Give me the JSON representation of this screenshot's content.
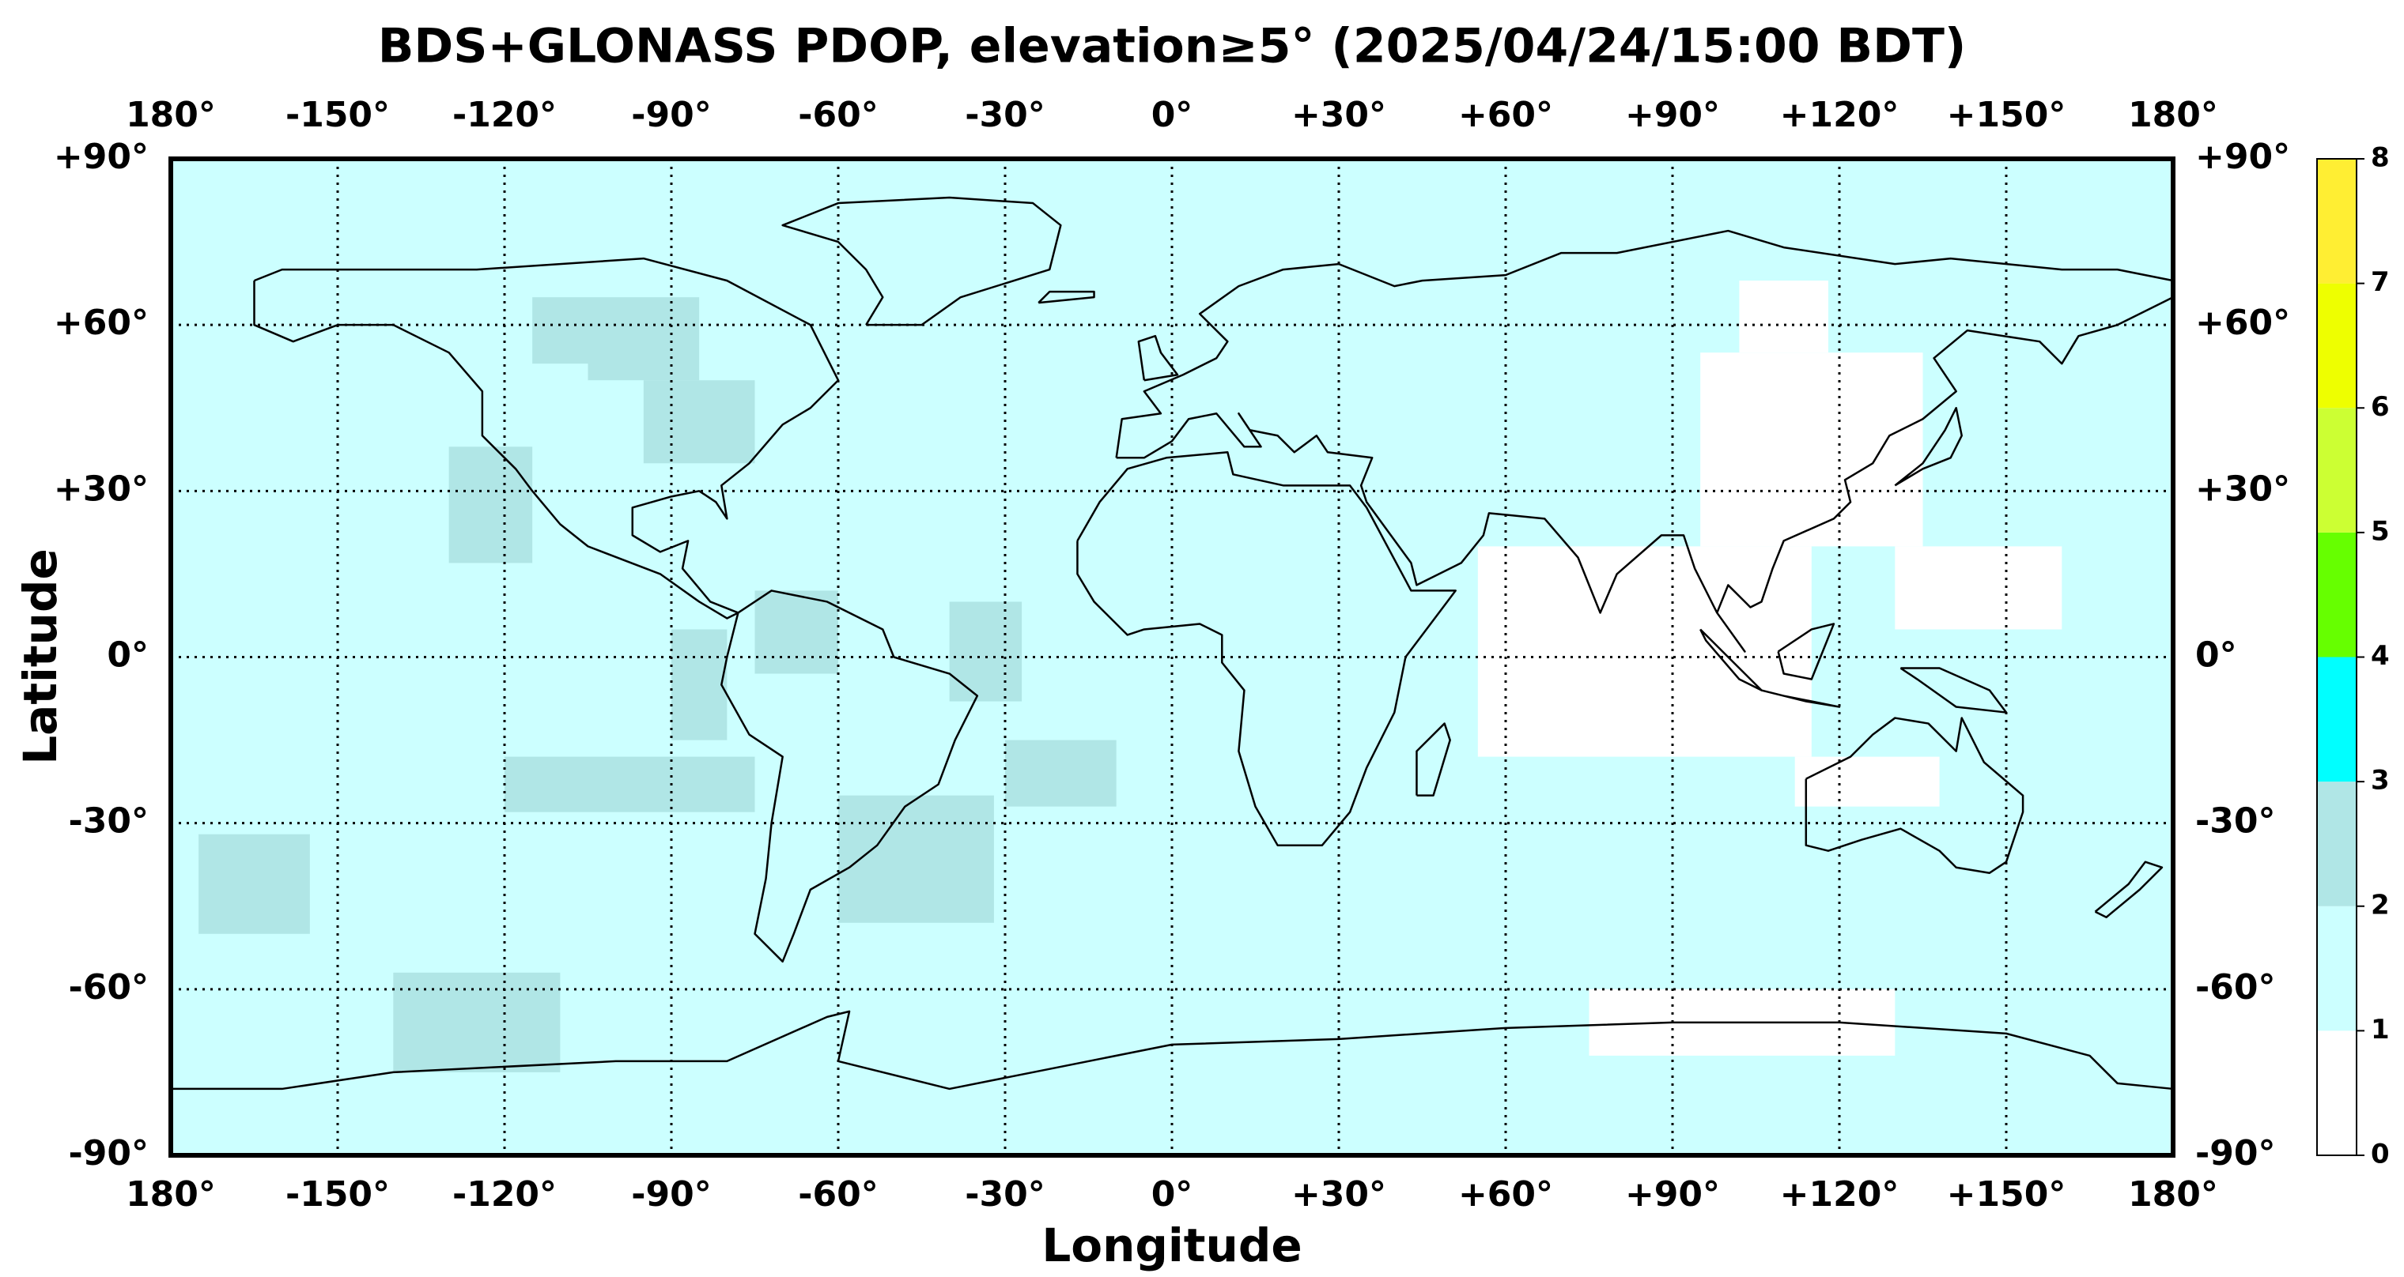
{
  "chart_data": {
    "type": "map",
    "title": "BDS+GLONASS PDOP, elevation≥5° (2025/04/24/15:00 BDT)",
    "x_label": "Longitude",
    "y_label": "Latitude",
    "xlim": [
      -180,
      180
    ],
    "ylim": [
      -90,
      90
    ],
    "xticks": [
      {
        "value": -180,
        "label": "180°"
      },
      {
        "value": -150,
        "label": "-150°"
      },
      {
        "value": -120,
        "label": "-120°"
      },
      {
        "value": -90,
        "label": "-90°"
      },
      {
        "value": -60,
        "label": "-60°"
      },
      {
        "value": -30,
        "label": "-30°"
      },
      {
        "value": 0,
        "label": "0°"
      },
      {
        "value": 30,
        "label": "+30°"
      },
      {
        "value": 60,
        "label": "+60°"
      },
      {
        "value": 90,
        "label": "+90°"
      },
      {
        "value": 120,
        "label": "+120°"
      },
      {
        "value": 150,
        "label": "+150°"
      },
      {
        "value": 180,
        "label": "180°"
      }
    ],
    "yticks": [
      {
        "value": -90,
        "label": "-90°"
      },
      {
        "value": -60,
        "label": "-60°"
      },
      {
        "value": -30,
        "label": "-30°"
      },
      {
        "value": 0,
        "label": "0°"
      },
      {
        "value": 30,
        "label": "+30°"
      },
      {
        "value": 60,
        "label": "+60°"
      },
      {
        "value": 90,
        "label": "+90°"
      }
    ],
    "grid": true,
    "colorbar": {
      "ticks": [
        0,
        1,
        2,
        3,
        4,
        5,
        6,
        7,
        8
      ],
      "colors": [
        "#ffffff",
        "#ccffff",
        "#b0e6e6",
        "#00ffff",
        "#66ff00",
        "#ccff33",
        "#eeff00",
        "#ffee33"
      ]
    },
    "regions": [
      {
        "lon": [
          -180,
          180
        ],
        "lat": [
          -90,
          90
        ],
        "pdop": 1.5
      },
      {
        "lon": [
          -105,
          -85
        ],
        "lat": [
          50,
          65
        ],
        "pdop": 2.5
      },
      {
        "lon": [
          -95,
          -75
        ],
        "lat": [
          35,
          50
        ],
        "pdop": 2.5
      },
      {
        "lon": [
          -130,
          -115
        ],
        "lat": [
          17,
          38
        ],
        "pdop": 2.5
      },
      {
        "lon": [
          -90,
          -80
        ],
        "lat": [
          -15,
          5
        ],
        "pdop": 2.5
      },
      {
        "lon": [
          -75,
          -60
        ],
        "lat": [
          -3,
          12
        ],
        "pdop": 2.5
      },
      {
        "lon": [
          -40,
          -27
        ],
        "lat": [
          -8,
          10
        ],
        "pdop": 2.5
      },
      {
        "lon": [
          -30,
          -10
        ],
        "lat": [
          -27,
          -15
        ],
        "pdop": 2.5
      },
      {
        "lon": [
          -60,
          -32
        ],
        "lat": [
          -48,
          -25
        ],
        "pdop": 2.5
      },
      {
        "lon": [
          -175,
          -155
        ],
        "lat": [
          -50,
          -32
        ],
        "pdop": 2.5
      },
      {
        "lon": [
          -140,
          -110
        ],
        "lat": [
          -75,
          -57
        ],
        "pdop": 2.5
      },
      {
        "lon": [
          -120,
          -75
        ],
        "lat": [
          -28,
          -18
        ],
        "pdop": 2.5
      },
      {
        "lon": [
          -115,
          -105
        ],
        "lat": [
          53,
          65
        ],
        "pdop": 2.5
      },
      {
        "lon": [
          55,
          115
        ],
        "lat": [
          -18,
          20
        ],
        "pdop": 0.9
      },
      {
        "lon": [
          95,
          135
        ],
        "lat": [
          20,
          55
        ],
        "pdop": 0.9
      },
      {
        "lon": [
          130,
          160
        ],
        "lat": [
          5,
          20
        ],
        "pdop": 0.9
      },
      {
        "lon": [
          75,
          130
        ],
        "lat": [
          -72,
          -60
        ],
        "pdop": 0.9
      },
      {
        "lon": [
          112,
          138
        ],
        "lat": [
          -27,
          -18
        ],
        "pdop": 0.9
      },
      {
        "lon": [
          102,
          118
        ],
        "lat": [
          55,
          68
        ],
        "pdop": 0.9
      }
    ]
  }
}
